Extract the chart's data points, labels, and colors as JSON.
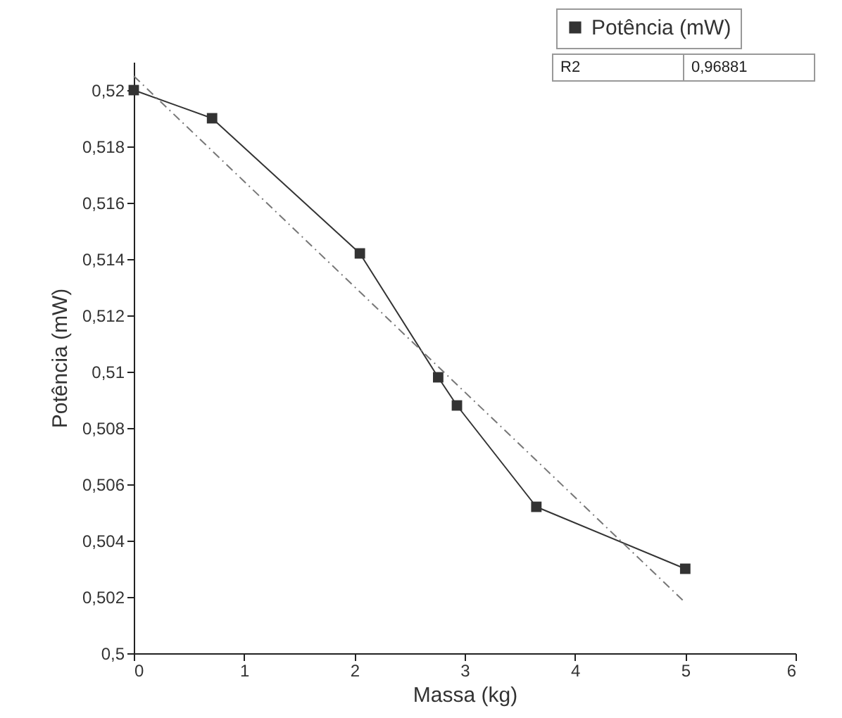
{
  "chart_data": {
    "type": "line",
    "xlabel": "Massa (kg)",
    "ylabel": "Potência (mW)",
    "xlim": [
      0,
      6
    ],
    "xticks": [
      0,
      1,
      2,
      3,
      4,
      5,
      6
    ],
    "ylim": [
      0.5,
      0.521
    ],
    "yticks": [
      {
        "value": 0.5,
        "label": "0,5"
      },
      {
        "value": 0.502,
        "label": "0,502"
      },
      {
        "value": 0.504,
        "label": "0,504"
      },
      {
        "value": 0.506,
        "label": "0,506"
      },
      {
        "value": 0.508,
        "label": "0,508"
      },
      {
        "value": 0.51,
        "label": "0,51"
      },
      {
        "value": 0.512,
        "label": "0,512"
      },
      {
        "value": 0.514,
        "label": "0,514"
      },
      {
        "value": 0.516,
        "label": "0,516"
      },
      {
        "value": 0.518,
        "label": "0,518"
      },
      {
        "value": 0.52,
        "label": "0,52"
      }
    ],
    "series": [
      {
        "name": "Potência (mW)",
        "color": "#333333",
        "marker": "square",
        "line_style": "solid",
        "x": [
          0,
          0.71,
          2.05,
          2.76,
          2.93,
          3.65,
          5
        ],
        "values": [
          0.52,
          0.519,
          0.5142,
          0.5098,
          0.5088,
          0.5052,
          0.503
        ]
      },
      {
        "type": "line",
        "color": "#777777",
        "marker": "none",
        "line_style": "dashed",
        "x": [
          0,
          5
        ],
        "values": [
          0.5205,
          0.5018
        ]
      }
    ],
    "legend": "top right",
    "grid": false,
    "annotations": [
      "R2",
      "0,96881"
    ]
  }
}
